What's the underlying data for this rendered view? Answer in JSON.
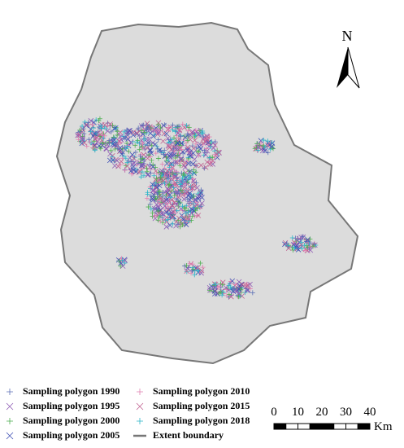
{
  "map": {
    "north_label": "N",
    "legend": [
      {
        "name": "Sampling polygon 1990",
        "color": "#5b6fb5",
        "marker": "plus"
      },
      {
        "name": "Sampling polygon 1995",
        "color": "#8e5bb5",
        "marker": "cross"
      },
      {
        "name": "Sampling polygon 2000",
        "color": "#4caf50",
        "marker": "plus"
      },
      {
        "name": "Sampling polygon 2005",
        "color": "#3f51b5",
        "marker": "cross"
      },
      {
        "name": "Sampling polygon 2010",
        "color": "#e07fb0",
        "marker": "plus"
      },
      {
        "name": "Sampling polygon 2015",
        "color": "#c06090",
        "marker": "cross"
      },
      {
        "name": "Sampling polygon 2018",
        "color": "#2bb5c8",
        "marker": "plus"
      },
      {
        "name": "Extent boundary",
        "color": "#777777",
        "marker": "line"
      }
    ],
    "scale_bar": {
      "ticks": [
        0,
        10,
        20,
        30,
        40
      ],
      "unit": "Km"
    }
  }
}
